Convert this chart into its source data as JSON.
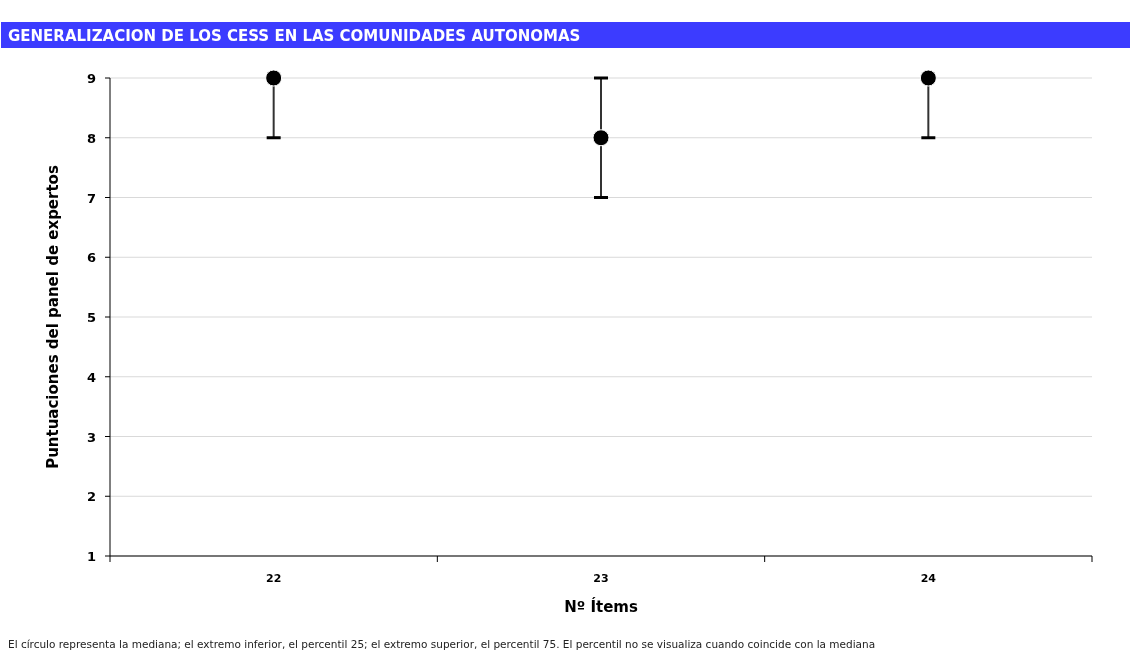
{
  "chart_data": {
    "type": "scatter",
    "title": "GENERALIZACION DE LOS CESS EN LAS COMUNIDADES AUTONOMAS",
    "xlabel": "Nº Ítems",
    "ylabel": "Puntuaciones del panel de expertos",
    "annotations": [
      "El círculo representa la mediana; el extremo inferior, el percentil 25; el extremo superior, el percentil 75. El percentil no se visualiza cuando coincide con la mediana"
    ],
    "categories": [
      "22",
      "23",
      "24"
    ],
    "values": [
      9,
      8,
      9
    ],
    "errors": [
      [
        8,
        9
      ],
      [
        7,
        9
      ],
      [
        8,
        9
      ]
    ],
    "color": "#000000",
    "marker": "circle",
    "ylim": [
      1,
      9
    ],
    "yticks": [
      1,
      2,
      3,
      4,
      5,
      6,
      7,
      8,
      9
    ],
    "grid": "y"
  }
}
